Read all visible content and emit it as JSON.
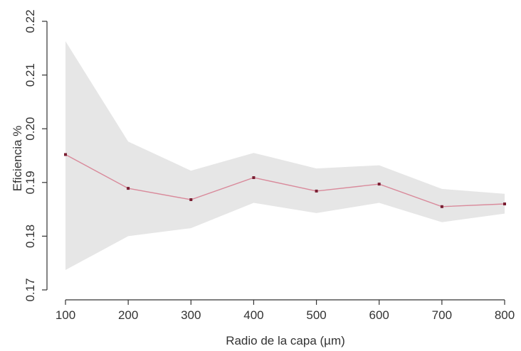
{
  "chart_data": {
    "type": "line",
    "title": "",
    "xlabel": "Radio de la capa (µm)",
    "ylabel": "Eficiencia %",
    "x": [
      100,
      200,
      300,
      400,
      500,
      600,
      700,
      800
    ],
    "x_ticks": [
      "100",
      "200",
      "300",
      "400",
      "500",
      "600",
      "700",
      "800"
    ],
    "y_ticks": [
      "0.17",
      "0.18",
      "0.19",
      "0.20",
      "0.21",
      "0.22"
    ],
    "xlim": [
      100,
      800
    ],
    "ylim": [
      0.17,
      0.22
    ],
    "grid": false,
    "series": [
      {
        "values": [
          0.1952,
          0.1889,
          0.1868,
          0.1909,
          0.1884,
          0.1897,
          0.1855,
          0.186
        ],
        "lower": [
          0.1737,
          0.18,
          0.1815,
          0.1862,
          0.1843,
          0.1862,
          0.1826,
          0.1842
        ],
        "upper": [
          0.2163,
          0.1976,
          0.1922,
          0.1955,
          0.1926,
          0.1932,
          0.1888,
          0.1879
        ],
        "line_color": "#d98a9b",
        "marker_color": "#7a1f33",
        "band_color": "#e6e6e6"
      }
    ]
  }
}
